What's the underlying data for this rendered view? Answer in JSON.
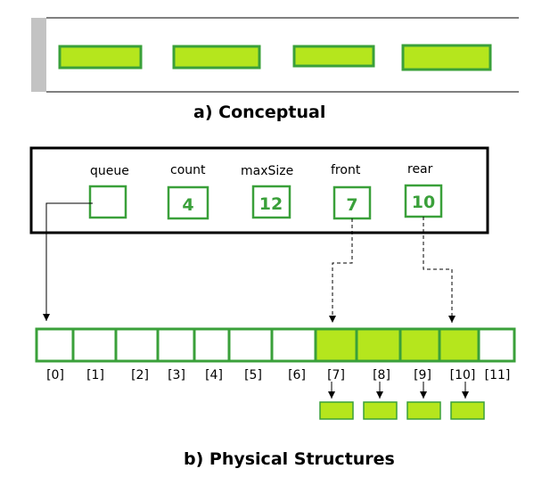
{
  "colors": {
    "fill_green": "#b5e61d",
    "border_green": "#3aa03a",
    "gray_bar": "#c3c3c3",
    "black": "#000000"
  },
  "conceptual": {
    "caption": "a) Conceptual",
    "element_count": 4
  },
  "physical": {
    "caption": "b) Physical Structures",
    "fields": [
      {
        "name": "queue",
        "value": ""
      },
      {
        "name": "count",
        "value": "4"
      },
      {
        "name": "maxSize",
        "value": "12"
      },
      {
        "name": "front",
        "value": "7"
      },
      {
        "name": "rear",
        "value": "10"
      }
    ],
    "array": {
      "indices": [
        "[0]",
        "[1]",
        "[2]",
        "[3]",
        "[4]",
        "[5]",
        "[6]",
        "[7]",
        "[8]",
        "[9]",
        "[10]",
        "[11]"
      ],
      "filled": [
        false,
        false,
        false,
        false,
        false,
        false,
        false,
        true,
        true,
        true,
        true,
        false
      ]
    },
    "data_blocks": 4
  }
}
